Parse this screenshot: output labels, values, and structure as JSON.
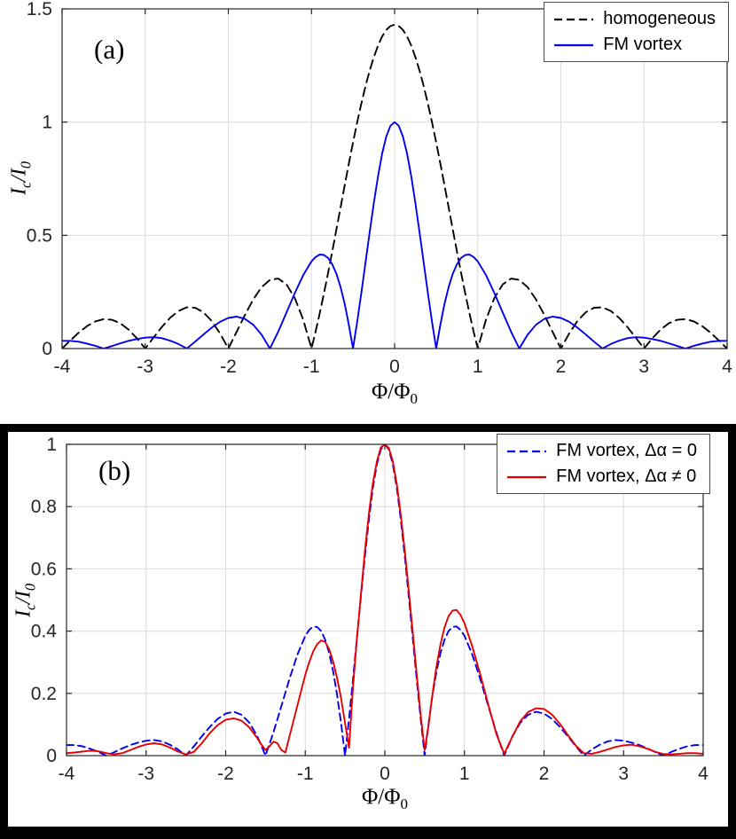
{
  "style": {
    "background": "#ffffff",
    "frame_color": "#000000",
    "grid_color": "#dcdcdc",
    "axis_color": "#262626"
  },
  "chart_data": [
    {
      "type": "line",
      "panel_label": "(a)",
      "xlabel": "Φ/Φ_0",
      "xlabel_parts": {
        "base": "Φ/Φ",
        "sub": "0"
      },
      "ylabel": "I_c/I_0",
      "ylabel_parts": {
        "base1": "I",
        "sub1": "c",
        "base2": "/I",
        "sub2": "0"
      },
      "xlim": [
        -4,
        4
      ],
      "ylim": [
        0,
        1.5
      ],
      "x_ticks": [
        -4,
        -3,
        -2,
        -1,
        0,
        1,
        2,
        3,
        4
      ],
      "x_tick_labels": [
        "-4",
        "-3",
        "-2",
        "-1",
        "0",
        "1",
        "2",
        "3",
        "4"
      ],
      "y_ticks": [
        0,
        0.5,
        1,
        1.5
      ],
      "y_tick_labels": [
        "0",
        "0.5",
        "1",
        "1.5"
      ],
      "grid": true,
      "legend_position": "upper right",
      "series": [
        {
          "name": "homogeneous",
          "color": "#000000",
          "line_style": "dashed",
          "dash": "10 6",
          "width": 1.9,
          "symmetric": true,
          "x": [
            0,
            0.05,
            0.1,
            0.15,
            0.2,
            0.25,
            0.3,
            0.35,
            0.4,
            0.45,
            0.5,
            0.55,
            0.6,
            0.65,
            0.7,
            0.75,
            0.8,
            0.85,
            0.9,
            0.95,
            1,
            1.1,
            1.2,
            1.3,
            1.4,
            1.5,
            1.6,
            1.7,
            1.8,
            1.9,
            2,
            2.1,
            2.2,
            2.3,
            2.4,
            2.5,
            2.6,
            2.7,
            2.8,
            2.9,
            3,
            3.1,
            3.2,
            3.3,
            3.4,
            3.5,
            3.6,
            3.7,
            3.8,
            3.9,
            4
          ],
          "y": [
            1.43,
            1.424,
            1.407,
            1.378,
            1.338,
            1.287,
            1.228,
            1.159,
            1.082,
            0.999,
            0.91,
            0.817,
            0.722,
            0.624,
            0.526,
            0.429,
            0.334,
            0.243,
            0.156,
            0.075,
            0,
            0.128,
            0.223,
            0.283,
            0.309,
            0.303,
            0.271,
            0.217,
            0.149,
            0.074,
            0,
            0.067,
            0.122,
            0.16,
            0.18,
            0.182,
            0.166,
            0.136,
            0.095,
            0.048,
            0,
            0.045,
            0.084,
            0.112,
            0.127,
            0.13,
            0.12,
            0.099,
            0.07,
            0.036,
            0
          ]
        },
        {
          "name": "FM vortex",
          "color": "#0000ee",
          "line_style": "solid",
          "dash": null,
          "width": 1.9,
          "symmetric": true,
          "x": [
            0,
            0.05,
            0.1,
            0.15,
            0.2,
            0.25,
            0.3,
            0.35,
            0.4,
            0.45,
            0.5,
            0.55,
            0.6,
            0.65,
            0.7,
            0.75,
            0.8,
            0.85,
            0.9,
            0.95,
            1,
            1.1,
            1.2,
            1.3,
            1.4,
            1.5,
            1.6,
            1.7,
            1.8,
            1.9,
            2,
            2.1,
            2.2,
            2.3,
            2.4,
            2.5,
            2.6,
            2.7,
            2.8,
            2.9,
            3,
            3.1,
            3.2,
            3.3,
            3.4,
            3.5,
            3.6,
            3.7,
            3.8,
            3.9,
            4
          ],
          "y": [
            1,
            0.984,
            0.936,
            0.86,
            0.76,
            0.643,
            0.514,
            0.38,
            0.246,
            0.118,
            0,
            0.105,
            0.196,
            0.271,
            0.33,
            0.372,
            0.4,
            0.413,
            0.415,
            0.404,
            0.385,
            0.324,
            0.245,
            0.159,
            0.075,
            0,
            0.061,
            0.105,
            0.131,
            0.141,
            0.135,
            0.118,
            0.092,
            0.062,
            0.03,
            0,
            0.02,
            0.035,
            0.046,
            0.05,
            0.048,
            0.042,
            0.034,
            0.023,
            0.011,
            0,
            0.012,
            0.022,
            0.03,
            0.034,
            0.034
          ]
        }
      ]
    },
    {
      "type": "line",
      "panel_label": "(b)",
      "xlabel": "Φ/Φ_0",
      "xlabel_parts": {
        "base": "Φ/Φ",
        "sub": "0"
      },
      "ylabel": "I_c/I_0",
      "ylabel_parts": {
        "base1": "I",
        "sub1": "c",
        "base2": "/I",
        "sub2": "0"
      },
      "xlim": [
        -4,
        4
      ],
      "ylim": [
        0,
        1
      ],
      "x_ticks": [
        -4,
        -3,
        -2,
        -1,
        0,
        1,
        2,
        3,
        4
      ],
      "x_tick_labels": [
        "-4",
        "-3",
        "-2",
        "-1",
        "0",
        "1",
        "2",
        "3",
        "4"
      ],
      "y_ticks": [
        0,
        0.2,
        0.4,
        0.6,
        0.8,
        1
      ],
      "y_tick_labels": [
        "0",
        "0.2",
        "0.4",
        "0.6",
        "0.8",
        "1"
      ],
      "grid": true,
      "legend_position": "upper right",
      "series": [
        {
          "name": "FM vortex, Δα = 0",
          "color": "#0000ee",
          "line_style": "dashed",
          "dash": "8 5",
          "width": 1.9,
          "symmetric": true,
          "x": [
            0,
            0.05,
            0.1,
            0.15,
            0.2,
            0.25,
            0.3,
            0.35,
            0.4,
            0.45,
            0.5,
            0.55,
            0.6,
            0.65,
            0.7,
            0.75,
            0.8,
            0.85,
            0.9,
            0.95,
            1,
            1.1,
            1.2,
            1.3,
            1.4,
            1.5,
            1.6,
            1.7,
            1.8,
            1.9,
            2,
            2.1,
            2.2,
            2.3,
            2.4,
            2.5,
            2.6,
            2.7,
            2.8,
            2.9,
            3,
            3.1,
            3.2,
            3.3,
            3.4,
            3.5,
            3.6,
            3.7,
            3.8,
            3.9,
            4
          ],
          "y": [
            1,
            0.984,
            0.936,
            0.86,
            0.76,
            0.643,
            0.514,
            0.38,
            0.246,
            0.118,
            0,
            0.105,
            0.196,
            0.271,
            0.33,
            0.372,
            0.4,
            0.413,
            0.415,
            0.404,
            0.385,
            0.324,
            0.245,
            0.159,
            0.075,
            0,
            0.061,
            0.105,
            0.131,
            0.141,
            0.135,
            0.118,
            0.092,
            0.062,
            0.03,
            0,
            0.02,
            0.035,
            0.046,
            0.05,
            0.048,
            0.042,
            0.034,
            0.023,
            0.011,
            0,
            0.012,
            0.022,
            0.03,
            0.034,
            0.034
          ]
        },
        {
          "name": "FM vortex, Δα ≠ 0",
          "color": "#e60000",
          "line_style": "solid",
          "dash": null,
          "width": 1.9,
          "symmetric": false,
          "x": [
            -4,
            -3.9,
            -3.8,
            -3.7,
            -3.6,
            -3.5,
            -3.4,
            -3.3,
            -3.2,
            -3.1,
            -3,
            -2.9,
            -2.8,
            -2.7,
            -2.6,
            -2.5,
            -2.4,
            -2.3,
            -2.2,
            -2.1,
            -2,
            -1.9,
            -1.8,
            -1.7,
            -1.6,
            -1.55,
            -1.5,
            -1.45,
            -1.4,
            -1.35,
            -1.3,
            -1.25,
            -1.2,
            -1.1,
            -1,
            -0.95,
            -0.9,
            -0.85,
            -0.8,
            -0.75,
            -0.7,
            -0.65,
            -0.6,
            -0.55,
            -0.5,
            -0.45,
            -0.4,
            -0.35,
            -0.3,
            -0.25,
            -0.2,
            -0.15,
            -0.1,
            -0.05,
            0,
            0.05,
            0.1,
            0.15,
            0.2,
            0.25,
            0.3,
            0.35,
            0.4,
            0.45,
            0.5,
            0.55,
            0.6,
            0.65,
            0.7,
            0.75,
            0.8,
            0.85,
            0.9,
            0.95,
            1,
            1.1,
            1.2,
            1.3,
            1.4,
            1.5,
            1.6,
            1.7,
            1.8,
            1.9,
            2,
            2.1,
            2.2,
            2.3,
            2.4,
            2.5,
            2.6,
            2.7,
            2.8,
            2.9,
            3,
            3.1,
            3.2,
            3.3,
            3.4,
            3.5,
            3.6,
            3.7,
            3.8,
            3.9,
            4
          ],
          "y": [
            0.008,
            0.01,
            0.013,
            0.016,
            0.014,
            0.008,
            0.004,
            0.008,
            0.018,
            0.028,
            0.036,
            0.04,
            0.036,
            0.026,
            0.013,
            0.004,
            0.012,
            0.04,
            0.072,
            0.098,
            0.115,
            0.12,
            0.112,
            0.09,
            0.055,
            0.035,
            0.018,
            0.03,
            0.045,
            0.04,
            0.018,
            0.01,
            0.06,
            0.16,
            0.26,
            0.3,
            0.335,
            0.358,
            0.37,
            0.365,
            0.342,
            0.302,
            0.25,
            0.185,
            0.105,
            0.025,
            0.22,
            0.38,
            0.52,
            0.66,
            0.78,
            0.875,
            0.945,
            0.99,
            1,
            0.988,
            0.945,
            0.872,
            0.775,
            0.66,
            0.532,
            0.398,
            0.262,
            0.13,
            0.018,
            0.1,
            0.2,
            0.288,
            0.358,
            0.412,
            0.448,
            0.466,
            0.468,
            0.452,
            0.425,
            0.35,
            0.26,
            0.163,
            0.07,
            0.006,
            0.06,
            0.11,
            0.14,
            0.152,
            0.15,
            0.132,
            0.102,
            0.066,
            0.032,
            0.008,
            0.006,
            0.012,
            0.02,
            0.028,
            0.033,
            0.035,
            0.03,
            0.022,
            0.012,
            0.005,
            0.004,
            0.006,
            0.008,
            0.008,
            0.006
          ]
        }
      ]
    }
  ]
}
